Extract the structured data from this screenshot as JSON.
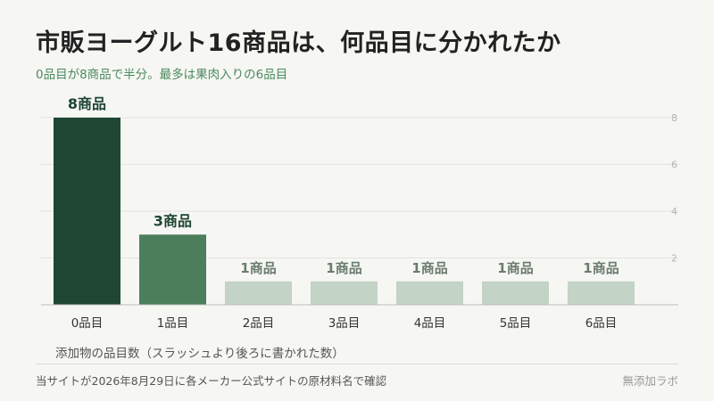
{
  "header": {
    "title": "市販ヨーグルト16商品は、何品目に分かれたか",
    "subtitle": "0品目が8商品で半分。最多は果肉入りの6品目"
  },
  "footer": {
    "note": "当サイトが2026年8月29日に各メーカー公式サイトの原材料名で確認",
    "brand": "無添加ラボ"
  },
  "chart_data": {
    "type": "bar",
    "xlabel": "添加物の品目数（スラッシュより後ろに書かれた数）",
    "ylabel": "",
    "ylim": [
      0,
      8
    ],
    "yticks": [
      2,
      4,
      6,
      8
    ],
    "grid": true,
    "categories": [
      "0品目",
      "1品目",
      "2品目",
      "3品目",
      "4品目",
      "5品目",
      "6品目"
    ],
    "values": [
      8,
      3,
      1,
      1,
      1,
      1,
      1
    ],
    "labels": [
      "8商品",
      "3商品",
      "1商品",
      "1商品",
      "1商品",
      "1商品",
      "1商品"
    ],
    "colors": {
      "highlight": "#1e4632",
      "secondary": "#4c7e5c",
      "muted": "#c3d3c6",
      "label_dark": "#1e4632",
      "label_muted": "#6b7c6e"
    }
  }
}
